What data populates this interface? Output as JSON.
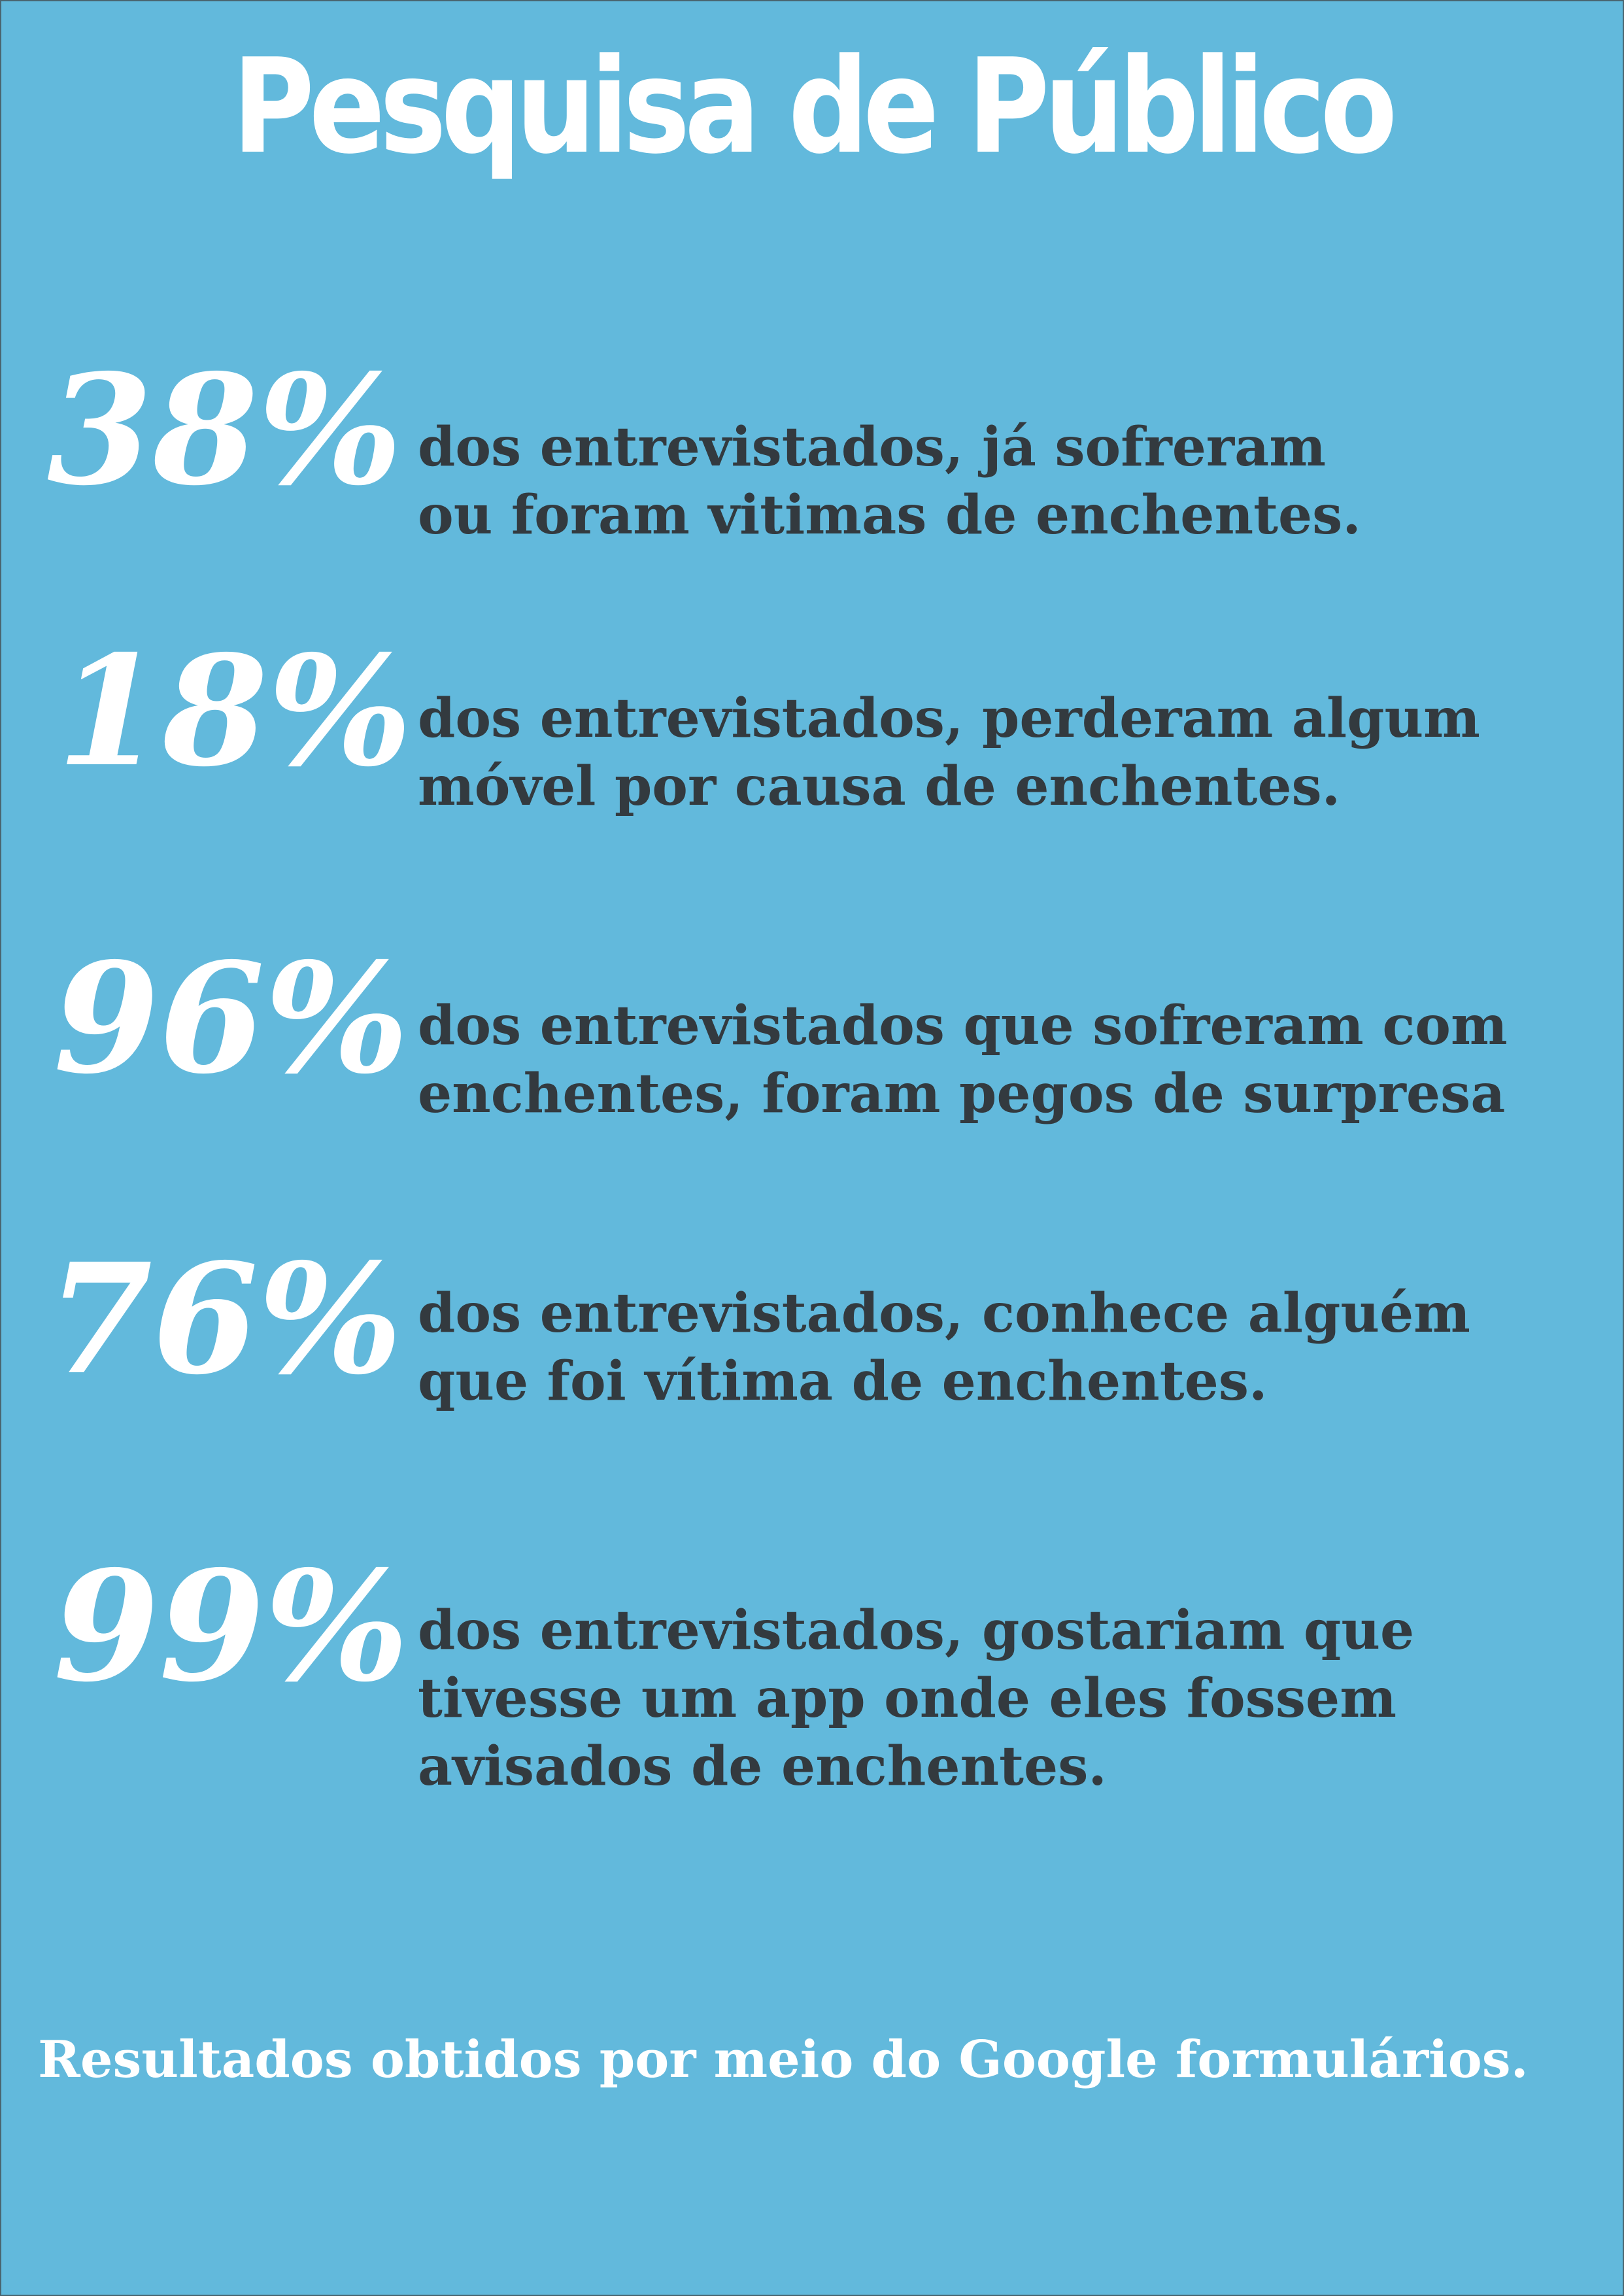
{
  "poster": {
    "title": "Pesquisa de Público",
    "stats": [
      {
        "value": "38%",
        "lines": [
          "dos entrevistados, já sofreram",
          "ou foram vitimas de enchentes."
        ]
      },
      {
        "value": "18%",
        "lines": [
          "dos entrevistados, perderam algum",
          "móvel por causa de enchentes."
        ]
      },
      {
        "value": "96%",
        "lines": [
          "dos entrevistados que sofreram com",
          "enchentes, foram pegos de surpresa"
        ]
      },
      {
        "value": "76%",
        "lines": [
          "dos entrevistados, conhece alguém",
          "que foi vítima de enchentes."
        ]
      },
      {
        "value": "99%",
        "lines": [
          "dos entrevistados, gostariam que",
          "tivesse um app onde eles fossem",
          "avisados de enchentes."
        ]
      }
    ],
    "footer": "Resultados obtidos por meio do Google formulários.",
    "colors": {
      "background": "#62b9dc",
      "headline": "#ffffff",
      "body_text": "#333a3f"
    }
  }
}
